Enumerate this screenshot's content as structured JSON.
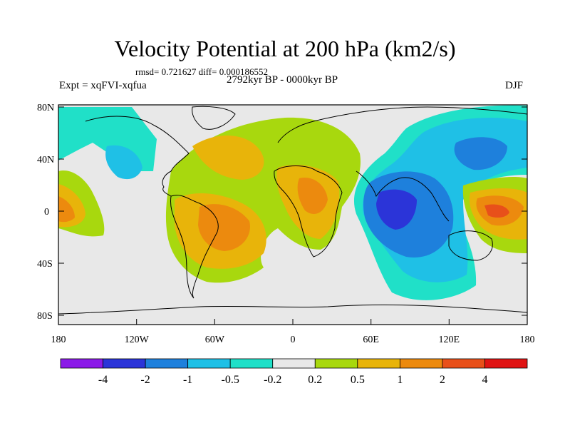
{
  "header": {
    "title": "Velocity Potential at 200 hPa (km2/s)",
    "stats": "rmsd= 0.721627 diff= 0.000186552",
    "experiment": "Expt = xqFVI-xqfua",
    "period": "2792kyr BP - 0000kyr BP",
    "season": "DJF"
  },
  "axes": {
    "lat_ticks": [
      "80N",
      "40N",
      "0",
      "40S",
      "80S"
    ],
    "lon_ticks": [
      "180",
      "120W",
      "60W",
      "0",
      "60E",
      "120E",
      "180"
    ]
  },
  "colorbar": {
    "colors": [
      "#8b1ae8",
      "#2b34d8",
      "#1e80dc",
      "#1fc0e6",
      "#20e0c8",
      "#e8e8e8",
      "#a8d80e",
      "#e8b40a",
      "#ec8a0e",
      "#e8501a",
      "#e01414"
    ],
    "labels": [
      "-4",
      "-2",
      "-1",
      "-0.5",
      "-0.2",
      "0.2",
      "0.5",
      "1",
      "2",
      "4"
    ]
  }
}
